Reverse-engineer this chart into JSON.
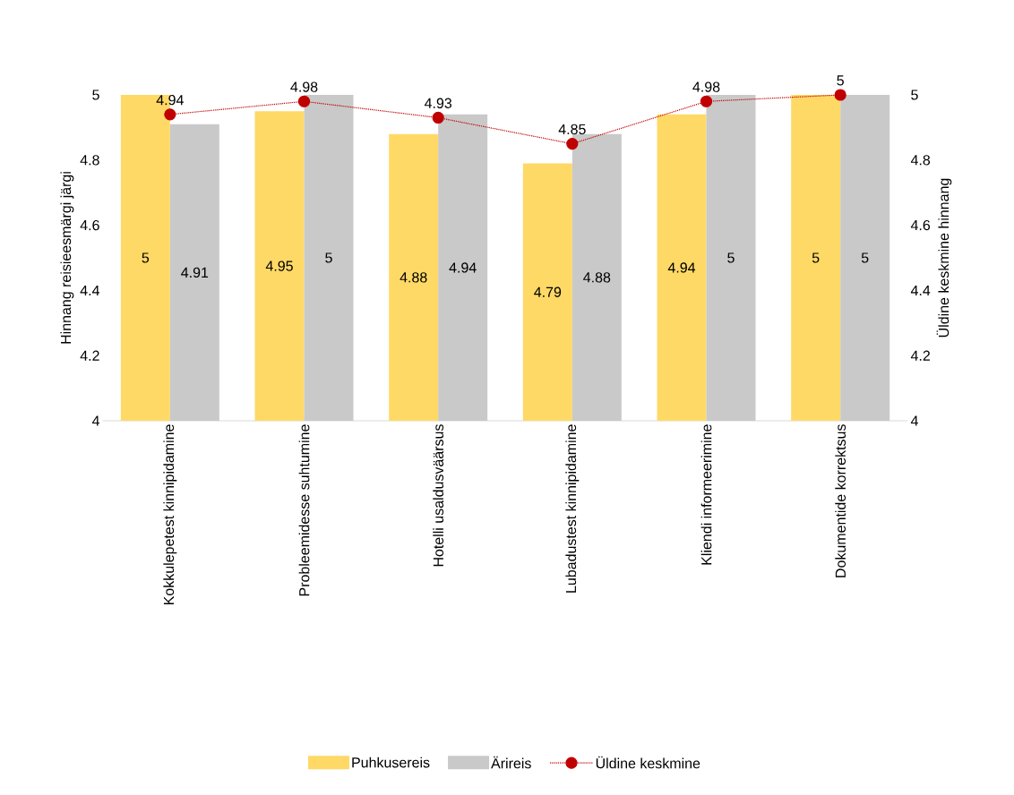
{
  "chart_data": {
    "type": "bar",
    "categories": [
      "Kokkulepetest kinnipidamine",
      "Probleemidesse suhtumine",
      "Hotelli usaldusväärsus",
      "Lubadustest kinnipidamine",
      "Kliendi informeerimine",
      "Dokumentide korrektsus"
    ],
    "ylabel": "Hinnang reisieesmärgi järgi",
    "y2label": "Üldine keskmine hinnang",
    "ylim": [
      4,
      5
    ],
    "yticks": [
      4,
      4.2,
      4.4,
      4.6,
      4.8,
      5
    ],
    "y2lim": [
      4,
      5
    ],
    "y2ticks": [
      4,
      4.2,
      4.4,
      4.6,
      4.8,
      5
    ],
    "legend": "bottom",
    "data_labels": true,
    "series": [
      {
        "name": "Puhkusereis",
        "color": "#ffd966",
        "values": [
          5,
          4.95,
          4.88,
          4.79,
          4.94,
          5
        ]
      },
      {
        "name": "Ärireis",
        "color": "#c9c9c9",
        "values": [
          4.91,
          5,
          4.94,
          4.88,
          5,
          5
        ]
      },
      {
        "name": "Üldine keskmine",
        "type": "line",
        "axis": "y2",
        "color": "#c00000",
        "line_style": "dotted",
        "marker": "circle",
        "values": [
          4.94,
          4.98,
          4.93,
          4.85,
          4.98,
          5
        ]
      }
    ]
  }
}
